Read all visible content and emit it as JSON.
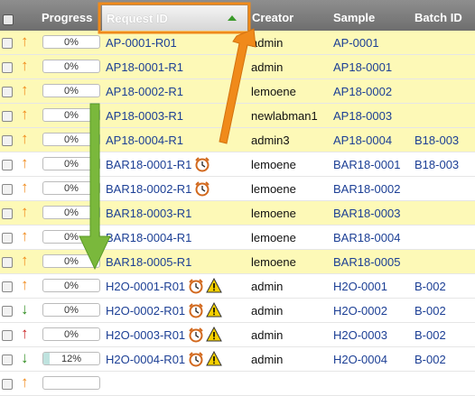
{
  "header": {
    "progress": "Progress",
    "request_id": "Request ID",
    "creator": "Creator",
    "sample": "Sample",
    "batch_id": "Batch ID"
  },
  "rows": [
    {
      "arrow": "up",
      "arrow_color": "#f08a1a",
      "progress": "0%",
      "fill": 0,
      "request_id": "AP-0001-R01",
      "icons": [],
      "creator": "admin",
      "sample": "AP-0001",
      "batch": "",
      "highlight": true
    },
    {
      "arrow": "up",
      "arrow_color": "#f08a1a",
      "progress": "0%",
      "fill": 0,
      "request_id": "AP18-0001-R1",
      "icons": [],
      "creator": "admin",
      "sample": "AP18-0001",
      "batch": "",
      "highlight": true
    },
    {
      "arrow": "up",
      "arrow_color": "#f08a1a",
      "progress": "0%",
      "fill": 0,
      "request_id": "AP18-0002-R1",
      "icons": [],
      "creator": "lemoene",
      "sample": "AP18-0002",
      "batch": "",
      "highlight": true
    },
    {
      "arrow": "up",
      "arrow_color": "#f08a1a",
      "progress": "0%",
      "fill": 0,
      "request_id": "AP18-0003-R1",
      "icons": [],
      "creator": "newlabman1",
      "sample": "AP18-0003",
      "batch": "",
      "highlight": true
    },
    {
      "arrow": "up",
      "arrow_color": "#f08a1a",
      "progress": "0%",
      "fill": 0,
      "request_id": "AP18-0004-R1",
      "icons": [],
      "creator": "admin3",
      "sample": "AP18-0004",
      "batch": "B18-003",
      "highlight": true
    },
    {
      "arrow": "up",
      "arrow_color": "#f08a1a",
      "progress": "0%",
      "fill": 0,
      "request_id": "BAR18-0001-R1",
      "icons": [
        "alarm"
      ],
      "creator": "lemoene",
      "sample": "BAR18-0001",
      "batch": "B18-003",
      "highlight": false
    },
    {
      "arrow": "up",
      "arrow_color": "#f08a1a",
      "progress": "0%",
      "fill": 0,
      "request_id": "BAR18-0002-R1",
      "icons": [
        "alarm"
      ],
      "creator": "lemoene",
      "sample": "BAR18-0002",
      "batch": "",
      "highlight": false
    },
    {
      "arrow": "up",
      "arrow_color": "#f08a1a",
      "progress": "0%",
      "fill": 0,
      "request_id": "BAR18-0003-R1",
      "icons": [],
      "creator": "lemoene",
      "sample": "BAR18-0003",
      "batch": "",
      "highlight": true
    },
    {
      "arrow": "up",
      "arrow_color": "#f08a1a",
      "progress": "0%",
      "fill": 0,
      "request_id": "BAR18-0004-R1",
      "icons": [],
      "creator": "lemoene",
      "sample": "BAR18-0004",
      "batch": "",
      "highlight": false
    },
    {
      "arrow": "up",
      "arrow_color": "#f08a1a",
      "progress": "0%",
      "fill": 0,
      "request_id": "BAR18-0005-R1",
      "icons": [],
      "creator": "lemoene",
      "sample": "BAR18-0005",
      "batch": "",
      "highlight": true
    },
    {
      "arrow": "up",
      "arrow_color": "#f08a1a",
      "progress": "0%",
      "fill": 0,
      "request_id": "H2O-0001-R01",
      "icons": [
        "alarm",
        "warning"
      ],
      "creator": "admin",
      "sample": "H2O-0001",
      "batch": "B-002",
      "highlight": false
    },
    {
      "arrow": "down",
      "arrow_color": "#2e8b1e",
      "progress": "0%",
      "fill": 0,
      "request_id": "H2O-0002-R01",
      "icons": [
        "alarm",
        "warning"
      ],
      "creator": "admin",
      "sample": "H2O-0002",
      "batch": "B-002",
      "highlight": false
    },
    {
      "arrow": "up",
      "arrow_color": "#c81e1e",
      "progress": "0%",
      "fill": 0,
      "request_id": "H2O-0003-R01",
      "icons": [
        "alarm",
        "warning"
      ],
      "creator": "admin",
      "sample": "H2O-0003",
      "batch": "B-002",
      "highlight": false
    },
    {
      "arrow": "down",
      "arrow_color": "#2e8b1e",
      "progress": "12%",
      "fill": 0.12,
      "request_id": "H2O-0004-R01",
      "icons": [
        "alarm",
        "warning"
      ],
      "creator": "admin",
      "sample": "H2O-0004",
      "batch": "B-002",
      "highlight": false
    },
    {
      "arrow": "up",
      "arrow_color": "#f08a1a",
      "progress": "",
      "fill": 0,
      "request_id": "",
      "icons": [],
      "creator": "",
      "sample": "",
      "batch": "",
      "highlight": false
    }
  ]
}
